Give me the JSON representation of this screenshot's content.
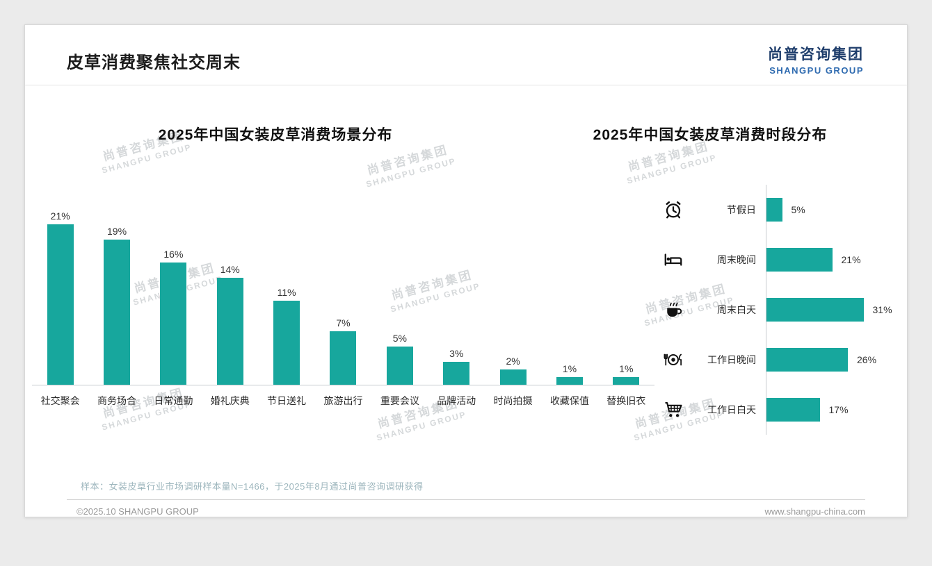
{
  "page": {
    "title": "皮草消费聚焦社交周末",
    "logo_cn": "尚普咨询集团",
    "logo_en": "SHANGPU GROUP",
    "watermark_cn": "尚普咨询集团",
    "watermark_en": "SHANGPU GROUP",
    "footer_note": "样本：女装皮草行业市场调研样本量N=1466，于2025年8月通过尚普咨询调研获得",
    "copyright": "©2025.10 SHANGPU GROUP",
    "website": "www.shangpu-china.com"
  },
  "colors": {
    "bar": "#17a79d",
    "logo_cn": "#1e3d6b",
    "logo_en": "#2f6bb0",
    "footnote": "#9db6bd"
  },
  "chart_data": [
    {
      "type": "bar",
      "orientation": "vertical",
      "title": "2025年中国女装皮草消费场景分布",
      "categories": [
        "社交聚会",
        "商务场合",
        "日常通勤",
        "婚礼庆典",
        "节日送礼",
        "旅游出行",
        "重要会议",
        "品牌活动",
        "时尚拍摄",
        "收藏保值",
        "替换旧衣"
      ],
      "values": [
        21,
        19,
        16,
        14,
        11,
        7,
        5,
        3,
        2,
        1,
        1
      ],
      "unit": "%",
      "ylim": [
        0,
        22
      ],
      "grid": false,
      "legend": "none",
      "value_labels": "above bars"
    },
    {
      "type": "bar",
      "orientation": "horizontal",
      "title": "2025年中国女装皮草消费时段分布",
      "categories": [
        "节假日",
        "周末晚间",
        "周末白天",
        "工作日晚间",
        "工作日白天"
      ],
      "values": [
        5,
        21,
        31,
        26,
        17
      ],
      "icons": [
        "alarm-clock",
        "bed",
        "coffee",
        "dining",
        "shopping-cart"
      ],
      "unit": "%",
      "xlim": [
        0,
        35
      ],
      "grid": false,
      "legend": "none",
      "value_labels": "right of bars"
    }
  ]
}
